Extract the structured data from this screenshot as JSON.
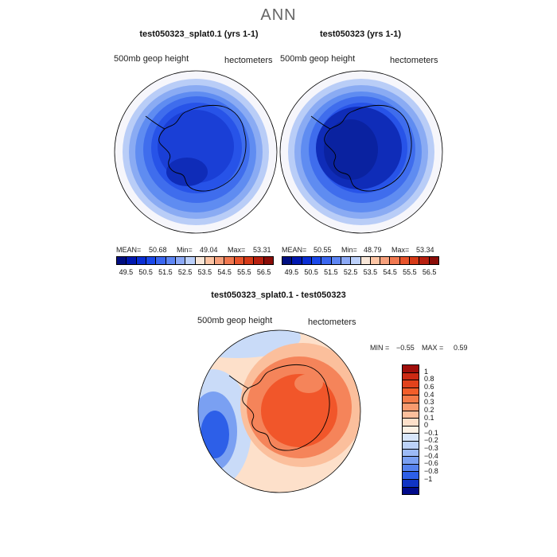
{
  "main_title": "ANN",
  "panels": [
    {
      "title": "test050323_splat0.1 (yrs 1-1)",
      "variable": "500mb geop height",
      "units": "hectometers",
      "mean_label": "MEAN=",
      "mean": "50.68",
      "min_label": "Min=",
      "min": "49.04",
      "max_label": "Max=",
      "max": "53.31"
    },
    {
      "title": "test050323 (yrs 1-1)",
      "variable": "500mb geop height",
      "units": "hectometers",
      "mean_label": "MEAN=",
      "mean": "50.55",
      "min_label": "Min=",
      "min": "48.79",
      "max_label": "Max=",
      "max": "53.34"
    }
  ],
  "abs_colorbar": {
    "colors": [
      "#000e80",
      "#0018b0",
      "#0a2ed4",
      "#1a48ea",
      "#3a66f0",
      "#5e86f4",
      "#8ca9f6",
      "#bcd0fa",
      "#f8e6d8",
      "#fcc4a4",
      "#f6a07c",
      "#f07850",
      "#e8542c",
      "#d63a18",
      "#b82010",
      "#8a0d08"
    ],
    "ticks": [
      "49.5",
      "50.5",
      "51.5",
      "52.5",
      "53.5",
      "54.5",
      "55.5",
      "56.5"
    ]
  },
  "diff_panel": {
    "title": "test050323_splat0.1 - test050323",
    "variable": "500mb geop height",
    "units": "hectometers",
    "min_label": "MIN =",
    "min": "−0.55",
    "max_label": "MAX =",
    "max": "0.59"
  },
  "diff_colorbar": {
    "colors": [
      "#a00e0a",
      "#cc2a14",
      "#e2421c",
      "#f25e2a",
      "#f47a48",
      "#f89a6e",
      "#fbbf9c",
      "#fde0ca",
      "#fdf2e6",
      "#d8e6fa",
      "#bcd2f8",
      "#9cbaf6",
      "#7aa0f2",
      "#5582ee",
      "#2d5fe8",
      "#1034c4",
      "#000a8a"
    ],
    "ticks": [
      "1",
      "0.8",
      "0.6",
      "0.4",
      "0.3",
      "0.2",
      "0.1",
      "0",
      "−0.1",
      "−0.2",
      "−0.3",
      "−0.4",
      "−0.6",
      "−0.8",
      "−1"
    ]
  },
  "map_colors": {
    "ring_outer": "#f6f6fb",
    "ring1": "#b9cdf7",
    "ring2": "#8aabf3",
    "ring3": "#5f8cf1",
    "ring4": "#3f6ded",
    "ring5": "#2753e8",
    "core": "#1a3fd6",
    "dark": "#0f2cb8",
    "darker": "#0a22a0",
    "diff_red": "#f1562a",
    "diff_orange": "#f5845a",
    "diff_light": "#fbbf9c",
    "diff_cream": "#fde0ca",
    "diff_blue_light": "#c9dbf8",
    "diff_blue": "#7aa0f2",
    "diff_blue_dark": "#2d5fe8"
  }
}
